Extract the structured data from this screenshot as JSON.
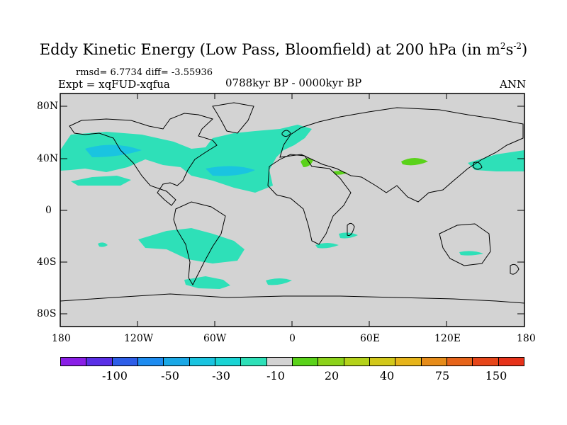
{
  "title": {
    "main": "Eddy Kinetic Energy (Low Pass, Bloomfield) at 200 hPa (in m",
    "sup1": "2",
    "mid": "s",
    "sup2": "-2",
    "end": ")"
  },
  "stats": "rmsd= 6.7734 diff= -3.55936",
  "expt": "Expt = xqFUD-xqfua",
  "period": "0788kyr BP - 0000kyr BP",
  "season": "ANN",
  "lat_labels": [
    "80N",
    "40N",
    "0",
    "40S",
    "80S"
  ],
  "lon_labels": [
    "180",
    "120W",
    "60W",
    "0",
    "60E",
    "120E",
    "180"
  ],
  "colorbar": {
    "colors": [
      "#8a1fe6",
      "#5a2fe6",
      "#2e5ee8",
      "#1e8cf0",
      "#1aa8e6",
      "#1ac4e0",
      "#1ad4d4",
      "#2ee0b8",
      "#d3d3d3",
      "#5ad21a",
      "#8cd21a",
      "#b4d21a",
      "#d2c81a",
      "#e6b41a",
      "#e68c1a",
      "#e6641a",
      "#e6461a",
      "#e6321a"
    ],
    "labels": [
      "-100",
      "-50",
      "-30",
      "-10",
      "20",
      "40",
      "75",
      "150"
    ]
  },
  "legend_colors": {
    "land_ocean_bg": "#d3d3d3",
    "negative_anomaly": "#2ee0b8",
    "negative_anomaly_strong": "#1ac4e0",
    "positive_anomaly": "#5ad21a"
  }
}
